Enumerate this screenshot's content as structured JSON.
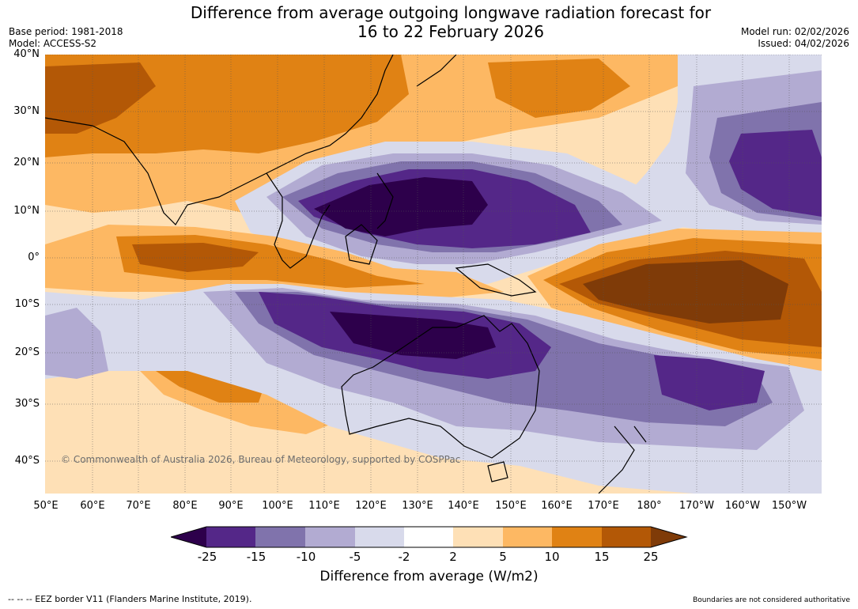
{
  "title_line1": "Difference from average outgoing longwave radiation forecast for",
  "title_line2": "16 to 22 February 2026",
  "base_period": "Base period: 1981-2018",
  "model": "Model: ACCESS-S2",
  "model_run": "Model run: 02/02/2026",
  "issued": "Issued: 04/02/2026",
  "lat_labels": [
    "40°N",
    "30°N",
    "20°N",
    "10°N",
    "0°",
    "10°S",
    "20°S",
    "30°S",
    "40°S"
  ],
  "lon_labels": [
    "50°E",
    "60°E",
    "70°E",
    "80°E",
    "90°E",
    "100°E",
    "110°E",
    "120°E",
    "130°E",
    "140°E",
    "150°E",
    "160°E",
    "170°E",
    "180°",
    "170°W",
    "160°W",
    "150°W"
  ],
  "copyright": "© Commonwealth of Australia 2026, Bureau of Meteorology, supported by COSPPac",
  "colorbar": {
    "ticks": [
      "-25",
      "-15",
      "-10",
      "-5",
      "-2",
      "2",
      "5",
      "10",
      "15",
      "25"
    ],
    "colors": [
      "#2d004b",
      "#542788",
      "#8073ac",
      "#b2abd2",
      "#d8daeb",
      "#ffffff",
      "#fee0b6",
      "#fdb863",
      "#e08214",
      "#b35806",
      "#7f3b08"
    ],
    "title": "Difference from average (W/m2)"
  },
  "footer_left": "--  --  -- EEZ border V11 (Flanders Marine Institute, 2019).",
  "footer_right": "Boundaries are not considered authoritative"
}
